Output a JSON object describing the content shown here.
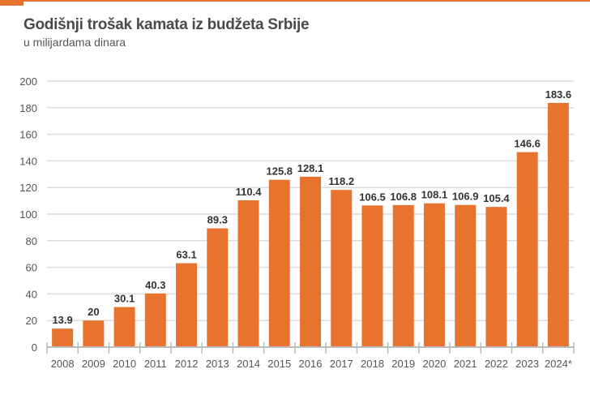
{
  "chart_data": {
    "type": "bar",
    "title": "Godišnji trošak kamata iz budžeta Srbije",
    "subtitle": "u milijardama dinara",
    "categories": [
      "2008",
      "2009",
      "2010",
      "2011",
      "2012",
      "2013",
      "2014",
      "2015",
      "2016",
      "2017",
      "2018",
      "2019",
      "2020",
      "2021",
      "2022",
      "2023",
      "2024*"
    ],
    "values": [
      13.9,
      20,
      30.1,
      40.3,
      63.1,
      89.3,
      110.4,
      125.8,
      128.1,
      118.2,
      106.5,
      106.8,
      108.1,
      106.9,
      105.4,
      146.6,
      183.6
    ],
    "data_labels": [
      "13.9",
      "20",
      "30.1",
      "40.3",
      "63.1",
      "89.3",
      "110.4",
      "125.8",
      "128.1",
      "118.2",
      "106.5",
      "106.8",
      "108.1",
      "106.9",
      "105.4",
      "146.6",
      "183.6"
    ],
    "yticks": [
      0,
      20,
      40,
      60,
      80,
      100,
      120,
      140,
      160,
      180,
      200
    ],
    "ylim": [
      0,
      200
    ],
    "grid": true,
    "colors": {
      "bar": "#e8732f",
      "accent": "#e8732f",
      "grid": "#dcdcdc"
    }
  }
}
